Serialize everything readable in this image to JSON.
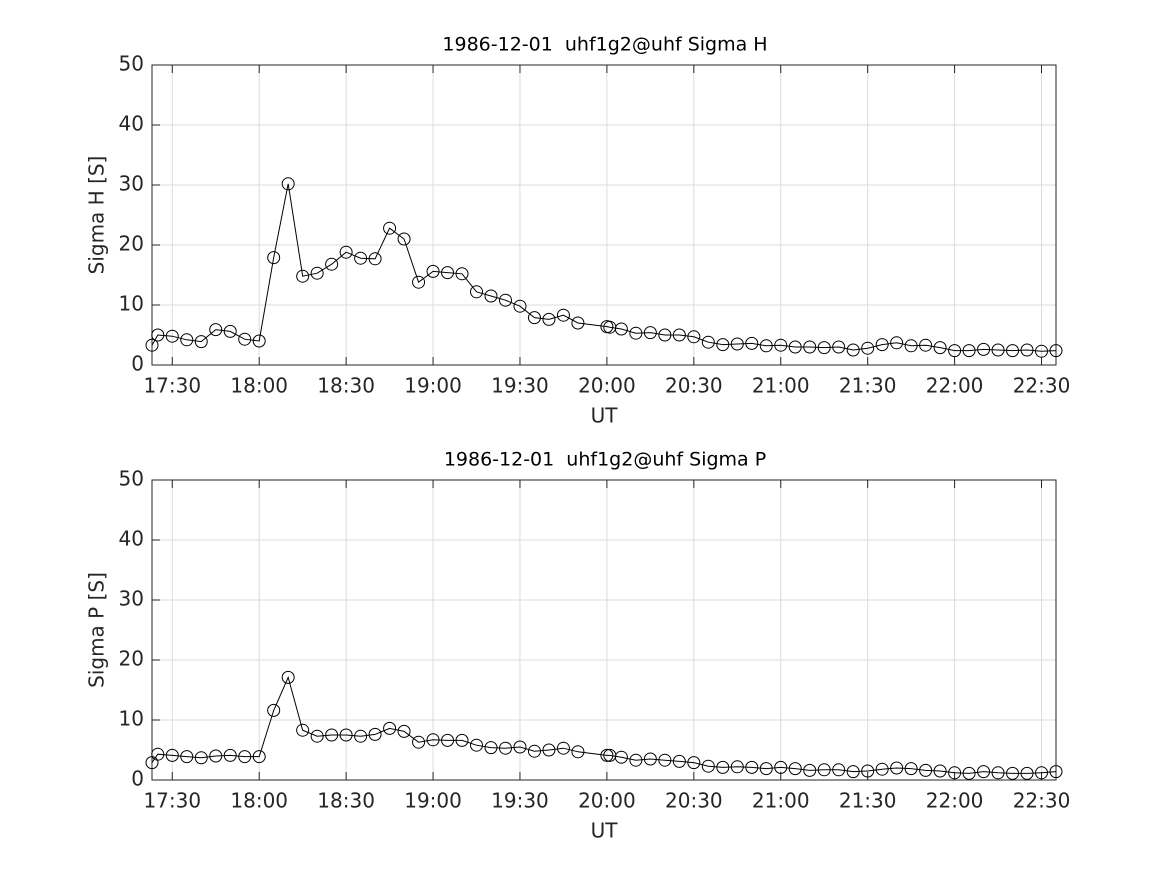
{
  "chart_data": [
    {
      "type": "line",
      "title": "1986-12-01  uhf1g2@uhf Sigma H",
      "xlabel": "UT",
      "ylabel": "Sigma H [S]",
      "x": [
        "17:23",
        "17:25",
        "17:30",
        "17:35",
        "17:40",
        "17:45",
        "17:50",
        "17:55",
        "18:00",
        "18:05",
        "18:10",
        "18:15",
        "18:20",
        "18:25",
        "18:30",
        "18:35",
        "18:40",
        "18:45",
        "18:50",
        "18:55",
        "19:00",
        "19:05",
        "19:10",
        "19:15",
        "19:20",
        "19:25",
        "19:30",
        "19:35",
        "19:40",
        "19:45",
        "19:50",
        "20:00",
        "20:01",
        "20:05",
        "20:10",
        "20:15",
        "20:20",
        "20:25",
        "20:30",
        "20:35",
        "20:40",
        "20:45",
        "20:50",
        "20:55",
        "21:00",
        "21:05",
        "21:10",
        "21:15",
        "21:20",
        "21:25",
        "21:30",
        "21:35",
        "21:40",
        "21:45",
        "21:50",
        "21:55",
        "22:00",
        "22:05",
        "22:10",
        "22:15",
        "22:20",
        "22:25",
        "22:30",
        "22:35"
      ],
      "series": [
        {
          "color": "#000000",
          "values": [
            3.3,
            5.0,
            4.8,
            4.2,
            3.9,
            5.9,
            5.6,
            4.3,
            4.0,
            17.9,
            30.2,
            14.8,
            15.3,
            16.8,
            18.8,
            17.8,
            17.7,
            22.8,
            21.0,
            13.8,
            15.6,
            15.4,
            15.2,
            12.2,
            11.5,
            10.8,
            9.8,
            7.9,
            7.6,
            8.3,
            7.0,
            6.4,
            6.3,
            6.0,
            5.3,
            5.4,
            5.0,
            5.0,
            4.7,
            3.8,
            3.4,
            3.5,
            3.6,
            3.2,
            3.3,
            3.0,
            3.0,
            2.9,
            3.0,
            2.5,
            2.8,
            3.4,
            3.7,
            3.2,
            3.3,
            2.9,
            2.4,
            2.4,
            2.6,
            2.5,
            2.4,
            2.5,
            2.3,
            2.4
          ]
        }
      ],
      "xlim": [
        "17:23",
        "22:35"
      ],
      "xticks": [
        "17:30",
        "18:00",
        "18:30",
        "19:00",
        "19:30",
        "20:00",
        "20:30",
        "21:00",
        "21:30",
        "22:00",
        "22:30"
      ],
      "ylim": [
        0,
        50
      ],
      "yticks": [
        0,
        10,
        20,
        30,
        40,
        50
      ],
      "grid": true
    },
    {
      "type": "line",
      "title": "1986-12-01  uhf1g2@uhf Sigma P",
      "xlabel": "UT",
      "ylabel": "Sigma P [S]",
      "x": [
        "17:23",
        "17:25",
        "17:30",
        "17:35",
        "17:40",
        "17:45",
        "17:50",
        "17:55",
        "18:00",
        "18:05",
        "18:10",
        "18:15",
        "18:20",
        "18:25",
        "18:30",
        "18:35",
        "18:40",
        "18:45",
        "18:50",
        "18:55",
        "19:00",
        "19:05",
        "19:10",
        "19:15",
        "19:20",
        "19:25",
        "19:30",
        "19:35",
        "19:40",
        "19:45",
        "19:50",
        "20:00",
        "20:01",
        "20:05",
        "20:10",
        "20:15",
        "20:20",
        "20:25",
        "20:30",
        "20:35",
        "20:40",
        "20:45",
        "20:50",
        "20:55",
        "21:00",
        "21:05",
        "21:10",
        "21:15",
        "21:20",
        "21:25",
        "21:30",
        "21:35",
        "21:40",
        "21:45",
        "21:50",
        "21:55",
        "22:00",
        "22:05",
        "22:10",
        "22:15",
        "22:20",
        "22:25",
        "22:30",
        "22:35"
      ],
      "series": [
        {
          "color": "#000000",
          "values": [
            2.9,
            4.3,
            4.1,
            3.9,
            3.7,
            4.0,
            4.1,
            3.9,
            3.9,
            11.6,
            17.1,
            8.3,
            7.3,
            7.5,
            7.5,
            7.3,
            7.6,
            8.6,
            8.1,
            6.3,
            6.7,
            6.6,
            6.6,
            5.8,
            5.4,
            5.3,
            5.5,
            4.8,
            5.0,
            5.3,
            4.7,
            4.1,
            4.1,
            3.8,
            3.3,
            3.5,
            3.3,
            3.1,
            2.9,
            2.3,
            2.1,
            2.2,
            2.1,
            1.9,
            2.1,
            1.9,
            1.6,
            1.7,
            1.7,
            1.4,
            1.5,
            1.8,
            2.0,
            1.9,
            1.6,
            1.5,
            1.2,
            1.1,
            1.4,
            1.2,
            1.1,
            1.1,
            1.2,
            1.4
          ]
        }
      ],
      "xlim": [
        "17:23",
        "22:35"
      ],
      "xticks": [
        "17:30",
        "18:00",
        "18:30",
        "19:00",
        "19:30",
        "20:00",
        "20:30",
        "21:00",
        "21:30",
        "22:00",
        "22:30"
      ],
      "ylim": [
        0,
        50
      ],
      "yticks": [
        0,
        10,
        20,
        30,
        40,
        50
      ],
      "grid": true
    }
  ]
}
